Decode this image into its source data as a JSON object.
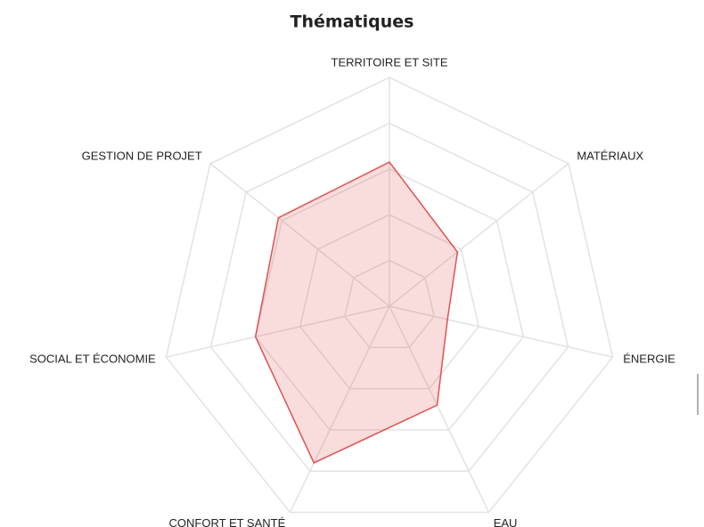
{
  "chart_data": {
    "type": "radar",
    "title": "Thématiques",
    "categories": [
      "TERRITOIRE ET SITE",
      "MATÉRIAUX",
      "ÉNERGIE",
      "EAU",
      "CONFORT ET SANTÉ",
      "SOCIAL ET ÉCONOMIE",
      "GESTION DE PROJET"
    ],
    "values": [
      3.15,
      1.9,
      1.3,
      2.4,
      3.8,
      3.0,
      3.1
    ],
    "color": "#e05252",
    "ylim": [
      0,
      5
    ],
    "yticks": [
      1,
      2,
      3,
      4,
      5
    ],
    "grid": true
  }
}
